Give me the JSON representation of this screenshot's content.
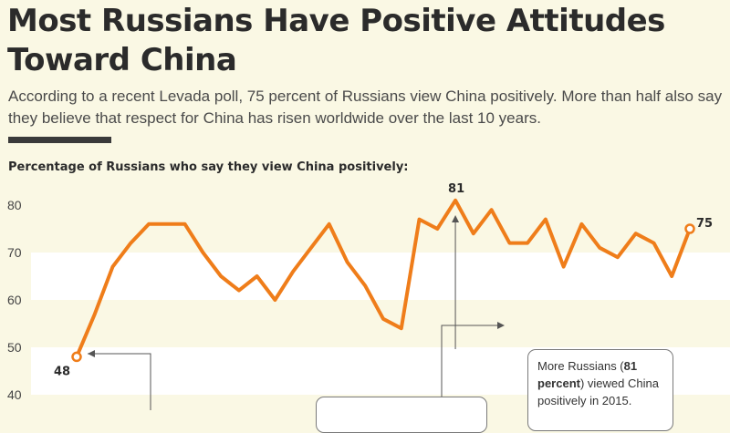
{
  "header": {
    "title": "Most Russians Have Positive Attitudes Toward China",
    "subtitle": "According to a recent Levada poll, 75 percent of Russians view China positively. More than half also say they believe that respect for China has risen worldwide over the last 10 years.",
    "chart_label": "Percentage of Russians who say they view China positively:"
  },
  "callouts": {
    "c2015_pre": "More Russians (",
    "c2015_bold1": "81",
    "c2015_bold2": "percent",
    "c2015_post": ") viewed China positively in 2015."
  },
  "colors": {
    "line": "#ef7d1a",
    "band": "#ffffff",
    "background": "#faf8e4",
    "text": "#2b2b2b"
  },
  "chart_data": {
    "type": "line",
    "title": "Percentage of Russians who say they view China positively:",
    "ylim": [
      35,
      85
    ],
    "y_ticks": [
      40,
      50,
      60,
      70,
      80
    ],
    "series": [
      {
        "values": [
          48,
          57,
          67,
          72,
          76,
          76,
          76,
          70,
          65,
          62,
          65,
          60,
          66,
          71,
          76,
          68,
          63,
          56,
          54,
          77,
          75,
          81,
          74,
          79,
          72,
          72,
          77,
          67,
          76,
          71,
          69,
          74,
          72,
          65,
          75
        ]
      }
    ],
    "annotations": [
      {
        "label": "48",
        "value": 48
      },
      {
        "label": "81",
        "value": 81
      },
      {
        "label": "75",
        "value": 75
      }
    ],
    "grid": true
  }
}
